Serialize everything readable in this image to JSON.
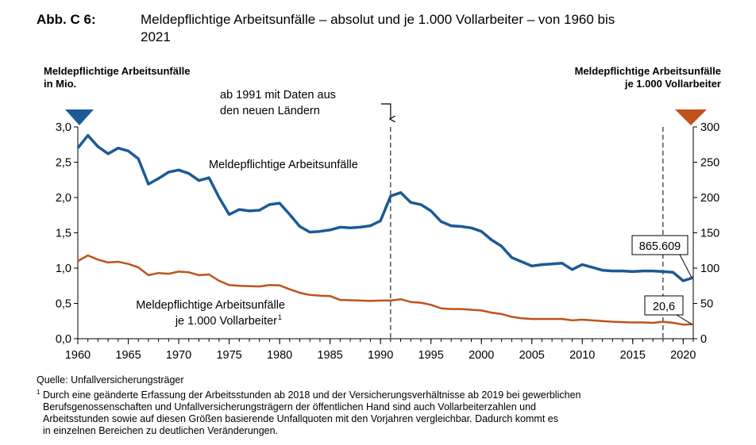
{
  "figure_label": "Abb. C 6:",
  "title_line1": "Meldepflichtige Arbeitsunfälle – absolut und je 1.000 Vollarbeiter – von 1960 bis",
  "title_line2": "2021",
  "source": "Quelle: Unfallversicherungsträger",
  "footnote_marker": "1",
  "footnote_lines": [
    "Durch eine geänderte Erfassung der Arbeitsstunden ab 2018 und der Versicherungsverhältnisse ab 2019 bei gewerblichen",
    "Berufsgenossenschaften und Unfallversicherungsträgern der öffentlichen Hand sind auch Vollarbeiterzahlen und",
    "Arbeitsstunden sowie auf diesen Größen basierende Unfallquoten mit den Vorjahren vergleichbar. Dadurch kommt es",
    "in einzelnen Bereichen zu deutlichen Veränderungen."
  ],
  "chart_data": {
    "type": "line",
    "title": "Meldepflichtige Arbeitsunfälle – absolut und je 1.000 Vollarbeiter – von 1960 bis 2021",
    "x": [
      1960,
      1961,
      1962,
      1963,
      1964,
      1965,
      1966,
      1967,
      1968,
      1969,
      1970,
      1971,
      1972,
      1973,
      1974,
      1975,
      1976,
      1977,
      1978,
      1979,
      1980,
      1981,
      1982,
      1983,
      1984,
      1985,
      1986,
      1987,
      1988,
      1989,
      1990,
      1991,
      1992,
      1993,
      1994,
      1995,
      1996,
      1997,
      1998,
      1999,
      2000,
      2001,
      2002,
      2003,
      2004,
      2005,
      2006,
      2007,
      2008,
      2009,
      2010,
      2011,
      2012,
      2013,
      2014,
      2015,
      2016,
      2017,
      2018,
      2019,
      2020,
      2021
    ],
    "x_ticks": [
      "1960",
      "1965",
      "1970",
      "1975",
      "1980",
      "1985",
      "1990",
      "1995",
      "2000",
      "2005",
      "2010",
      "2015",
      "2020"
    ],
    "xlim": [
      1960,
      2021
    ],
    "y_left": {
      "label_line1": "Meldepflichtige Arbeitsunfälle",
      "label_line2": "in Mio.",
      "ticks": [
        "0,0",
        "0,5",
        "1,0",
        "1,5",
        "2,0",
        "2,5",
        "3,0"
      ],
      "ylim": [
        0,
        3
      ]
    },
    "y_right": {
      "label_line1": "Meldepflichtige Arbeitsunfälle",
      "label_line2": "je 1.000 Vollarbeiter",
      "ticks": [
        "0",
        "50",
        "100",
        "150",
        "200",
        "250",
        "300"
      ],
      "ylim": [
        0,
        300
      ]
    },
    "grid": false,
    "series": [
      {
        "name": "Meldepflichtige Arbeitsunfälle",
        "axis": "left",
        "color": "#1c5a96",
        "values": [
          2.7,
          2.88,
          2.72,
          2.62,
          2.7,
          2.66,
          2.55,
          2.19,
          2.27,
          2.36,
          2.39,
          2.34,
          2.24,
          2.28,
          2.0,
          1.76,
          1.83,
          1.81,
          1.82,
          1.9,
          1.92,
          1.76,
          1.59,
          1.51,
          1.52,
          1.54,
          1.58,
          1.57,
          1.58,
          1.6,
          1.67,
          2.02,
          2.07,
          1.93,
          1.9,
          1.81,
          1.66,
          1.6,
          1.59,
          1.57,
          1.52,
          1.4,
          1.31,
          1.15,
          1.09,
          1.03,
          1.05,
          1.06,
          1.07,
          0.98,
          1.05,
          1.01,
          0.97,
          0.96,
          0.96,
          0.95,
          0.96,
          0.96,
          0.95,
          0.94,
          0.82,
          0.866
        ]
      },
      {
        "name_line1": "Meldepflichtige Arbeitsunfälle",
        "name_line2": "je 1.000 Vollarbeiter",
        "name_marker": "1",
        "axis": "right",
        "color": "#c0521b",
        "values": [
          110,
          118,
          112,
          108,
          109,
          106,
          101,
          90,
          93,
          92,
          95,
          94,
          90,
          91,
          82,
          76,
          75,
          74.5,
          74,
          76,
          75.5,
          70,
          65,
          62,
          61,
          60.5,
          55,
          54.5,
          54,
          53.5,
          54,
          54,
          56,
          52,
          51,
          48,
          43,
          42,
          42,
          41,
          40,
          37,
          35,
          31,
          29,
          28,
          28,
          28,
          28,
          26,
          27,
          26,
          25,
          24,
          23.5,
          23,
          23,
          22.5,
          24,
          22.5,
          20,
          20.6
        ]
      }
    ],
    "reference_lines": [
      {
        "x": 1991,
        "label_line1": "ab 1991 mit Daten aus",
        "label_line2": "den neuen Ländern"
      },
      {
        "x": 2018
      }
    ],
    "callouts": [
      {
        "series": 0,
        "text": "865.609"
      },
      {
        "series": 1,
        "text": "20,6"
      }
    ]
  }
}
